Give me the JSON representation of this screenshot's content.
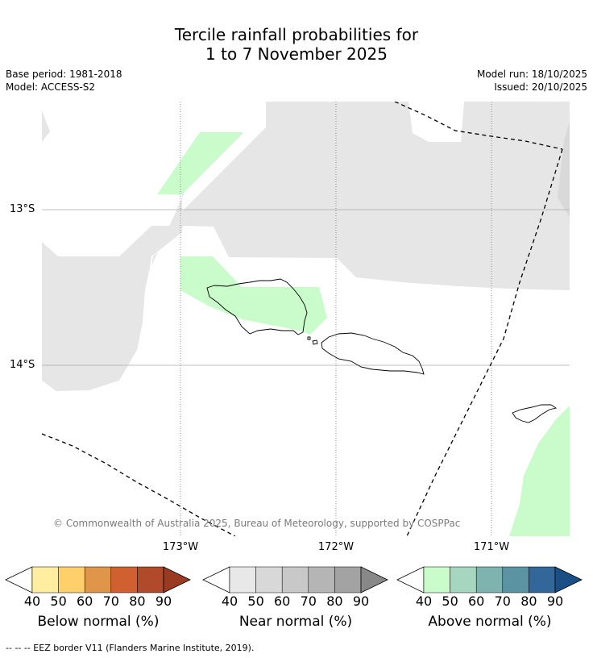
{
  "title_line1": "Tercile rainfall probabilities for",
  "title_line2": "1 to 7 November 2025",
  "base_period": "Base period: 1981-2018",
  "model": "Model: ACCESS-S2",
  "model_run": "Model run: 18/10/2025",
  "issued": "Issued: 20/10/2025",
  "lat_labels": [
    "13°S",
    "14°S"
  ],
  "lon_labels": [
    "173°W",
    "172°W",
    "171°W"
  ],
  "copyright": "© Commonwealth of Australia 2025, Bureau of Meteorology, supported by COSPPac",
  "footer": "--  --  -- EEZ border V11 (Flanders Marine Institute, 2019).",
  "colorbars": [
    {
      "label": "Below normal (%)",
      "colors": [
        "#ffffff",
        "#ffeda0",
        "#fecf6a",
        "#e0964a",
        "#d06030",
        "#b04a2a",
        "#9a3a22"
      ]
    },
    {
      "label": "Near normal (%)",
      "colors": [
        "#ffffff",
        "#e8e8e8",
        "#d8d8d8",
        "#c8c8c8",
        "#b5b5b5",
        "#a3a3a3",
        "#888888"
      ]
    },
    {
      "label": "Above normal (%)",
      "colors": [
        "#ffffff",
        "#c9fbcb",
        "#a6d6bf",
        "#7fb3b0",
        "#5b93a3",
        "#336699",
        "#1a4f86"
      ]
    }
  ],
  "ticks": [
    "40",
    "50",
    "60",
    "70",
    "80",
    "90"
  ],
  "colors": {
    "near_normal_region": "#e6e6e6",
    "above_normal_region": "#c9fbcb",
    "gridline": "#999999",
    "copyright_text": "#7a7a7a"
  }
}
